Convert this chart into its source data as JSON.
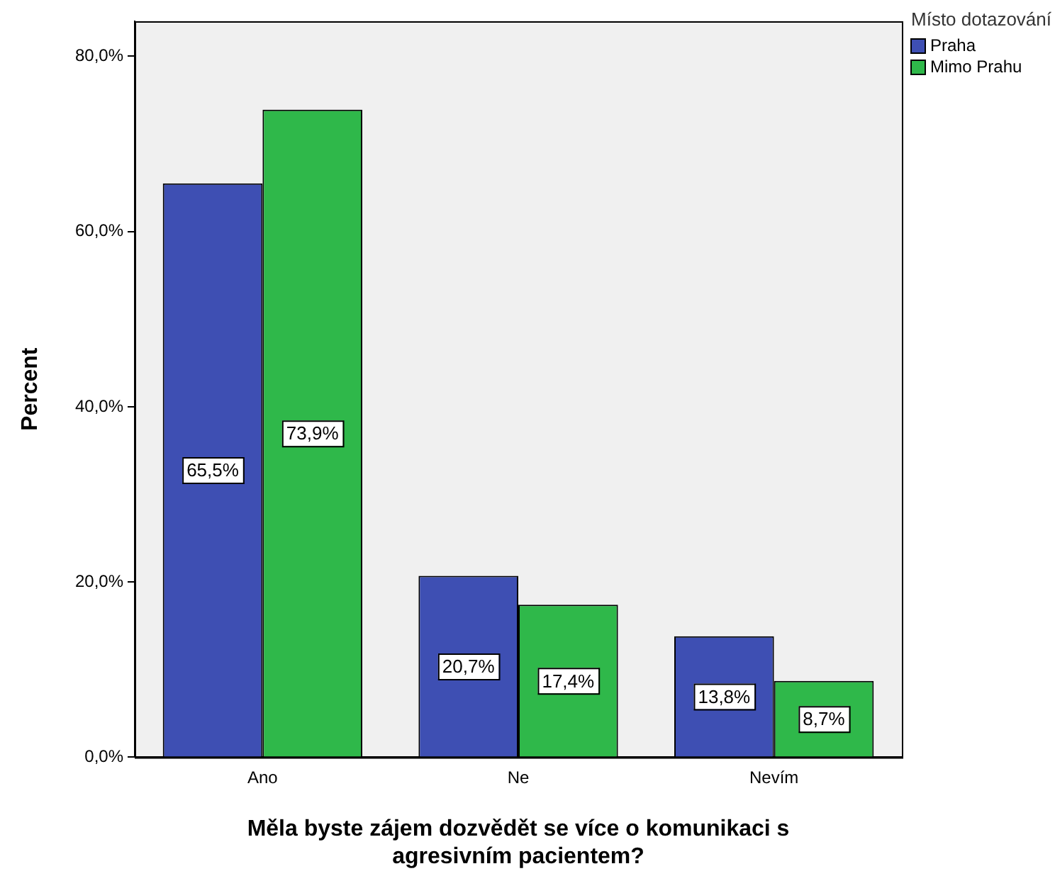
{
  "chart_data": {
    "type": "bar",
    "xlabel": "Měla byste zájem dozvědět se více o komunikaci s agresivním pacientem?",
    "ylabel": "Percent",
    "legend_title": "Místo dotazování",
    "legend": "top right",
    "grid": false,
    "categories": [
      "Ano",
      "Ne",
      "Nevím"
    ],
    "series": [
      {
        "name": "Praha",
        "color": "#3e4fb3",
        "values": [
          65.5,
          20.7,
          13.8
        ],
        "value_labels": [
          "65,5%",
          "20,7%",
          "13,8%"
        ]
      },
      {
        "name": "Mimo Prahu",
        "color": "#2fb84a",
        "values": [
          73.9,
          17.4,
          8.7
        ],
        "value_labels": [
          "73,9%",
          "17,4%",
          "8,7%"
        ]
      }
    ],
    "ylim": [
      0,
      84
    ],
    "yticks": [
      {
        "value": 0,
        "label": "0,0%"
      },
      {
        "value": 20,
        "label": "20,0%"
      },
      {
        "value": 40,
        "label": "40,0%"
      },
      {
        "value": 60,
        "label": "60,0%"
      },
      {
        "value": 80,
        "label": "80,0%"
      }
    ]
  }
}
